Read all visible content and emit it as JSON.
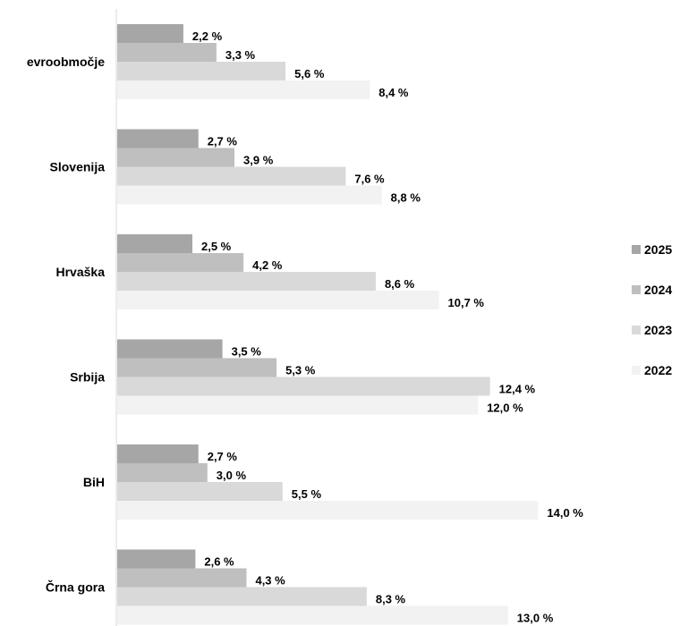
{
  "chart_data": {
    "type": "bar",
    "orientation": "horizontal",
    "title": "",
    "xlabel": "",
    "ylabel": "",
    "value_suffix": " %",
    "categories": [
      "evroobmočje",
      "Slovenija",
      "Hrvaška",
      "Srbija",
      "BiH",
      "Črna gora"
    ],
    "series": [
      {
        "name": "2025",
        "color": "#a6a6a6",
        "values": [
          2.2,
          2.7,
          2.5,
          3.5,
          2.7,
          2.6
        ],
        "labels": [
          "2,2 %",
          "2,7 %",
          "2,5 %",
          "3,5 %",
          "2,7 %",
          "2,6 %"
        ]
      },
      {
        "name": "2024",
        "color": "#bfbfbf",
        "values": [
          3.3,
          3.9,
          4.2,
          5.3,
          3.0,
          4.3
        ],
        "labels": [
          "3,3 %",
          "3,9 %",
          "4,2 %",
          "5,3 %",
          "3,0 %",
          "4,3 %"
        ]
      },
      {
        "name": "2023",
        "color": "#d9d9d9",
        "values": [
          5.6,
          7.6,
          8.6,
          12.4,
          5.5,
          8.3
        ],
        "labels": [
          "5,6 %",
          "7,6 %",
          "8,6 %",
          "12,4 %",
          "5,5 %",
          "8,3 %"
        ]
      },
      {
        "name": "2022",
        "color": "#f2f2f2",
        "values": [
          8.4,
          8.8,
          10.7,
          12.0,
          14.0,
          13.0
        ],
        "labels": [
          "8,4 %",
          "8,8 %",
          "10,7 %",
          "12,0 %",
          "14,0 %",
          "13,0 %"
        ]
      }
    ],
    "xlim": [
      0,
      15.5
    ],
    "grid": false,
    "axis_visible": false,
    "legend_position": "right"
  }
}
